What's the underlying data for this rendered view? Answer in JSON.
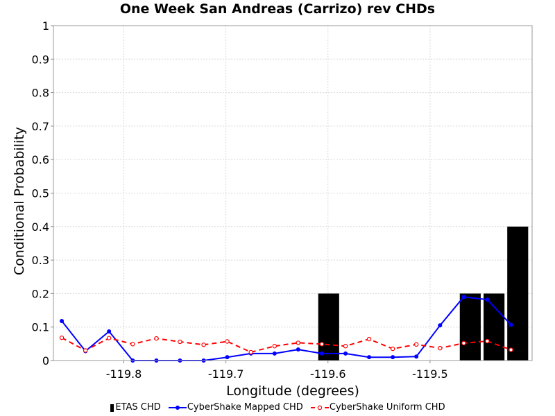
{
  "chart_data": {
    "type": "line",
    "title": "One Week San Andreas (Carrizo) rev CHDs",
    "xlabel": "Longitude (degrees)",
    "ylabel": "Conditional Probability",
    "xlim": [
      -119.869,
      -119.4
    ],
    "ylim": [
      0,
      1
    ],
    "x_ticks": [
      -119.8,
      -119.7,
      -119.6,
      -119.5
    ],
    "x_tick_labels": [
      "-119.8",
      "-119.7",
      "-119.6",
      "-119.5"
    ],
    "y_ticks": [
      0,
      0.1,
      0.2,
      0.3,
      0.4,
      0.5,
      0.6,
      0.7,
      0.8,
      0.9,
      1
    ],
    "y_tick_labels": [
      "0",
      "0.1",
      "0.2",
      "0.3",
      "0.4",
      "0.5",
      "0.6",
      "0.7",
      "0.8",
      "0.9",
      "1"
    ],
    "grid": true,
    "legend_position": "bottom",
    "series": [
      {
        "name": "ETAS CHD",
        "kind": "bar",
        "color": "#000000",
        "x": [
          -119.5993,
          -119.4606,
          -119.4373,
          -119.4141
        ],
        "values": [
          0.2,
          0.2,
          0.2,
          0.4
        ]
      },
      {
        "name": "CyberShake Mapped CHD",
        "kind": "line",
        "style": "solid",
        "marker": "filled-circle",
        "color": "#0000ff",
        "x": [
          -119.8608,
          -119.8376,
          -119.8145,
          -119.7913,
          -119.7681,
          -119.745,
          -119.7218,
          -119.6987,
          -119.6755,
          -119.6523,
          -119.6292,
          -119.606,
          -119.5828,
          -119.5597,
          -119.5365,
          -119.5134,
          -119.4902,
          -119.467,
          -119.4439,
          -119.4207
        ],
        "values": [
          0.118,
          0.028,
          0.087,
          0.0,
          0.0,
          0.0,
          0.0,
          0.01,
          0.021,
          0.021,
          0.033,
          0.021,
          0.021,
          0.01,
          0.01,
          0.012,
          0.105,
          0.19,
          0.182,
          0.107
        ]
      },
      {
        "name": "CyberShake Uniform CHD",
        "kind": "line",
        "style": "dashed",
        "marker": "open-circle",
        "color": "#ff0000",
        "x": [
          -119.8608,
          -119.8376,
          -119.8145,
          -119.7913,
          -119.7681,
          -119.745,
          -119.7218,
          -119.6987,
          -119.6755,
          -119.6523,
          -119.6292,
          -119.606,
          -119.5828,
          -119.5597,
          -119.5365,
          -119.5134,
          -119.4902,
          -119.467,
          -119.4439,
          -119.4207
        ],
        "values": [
          0.068,
          0.03,
          0.067,
          0.049,
          0.066,
          0.056,
          0.047,
          0.057,
          0.025,
          0.043,
          0.053,
          0.049,
          0.043,
          0.064,
          0.035,
          0.048,
          0.037,
          0.052,
          0.058,
          0.032
        ]
      }
    ]
  }
}
